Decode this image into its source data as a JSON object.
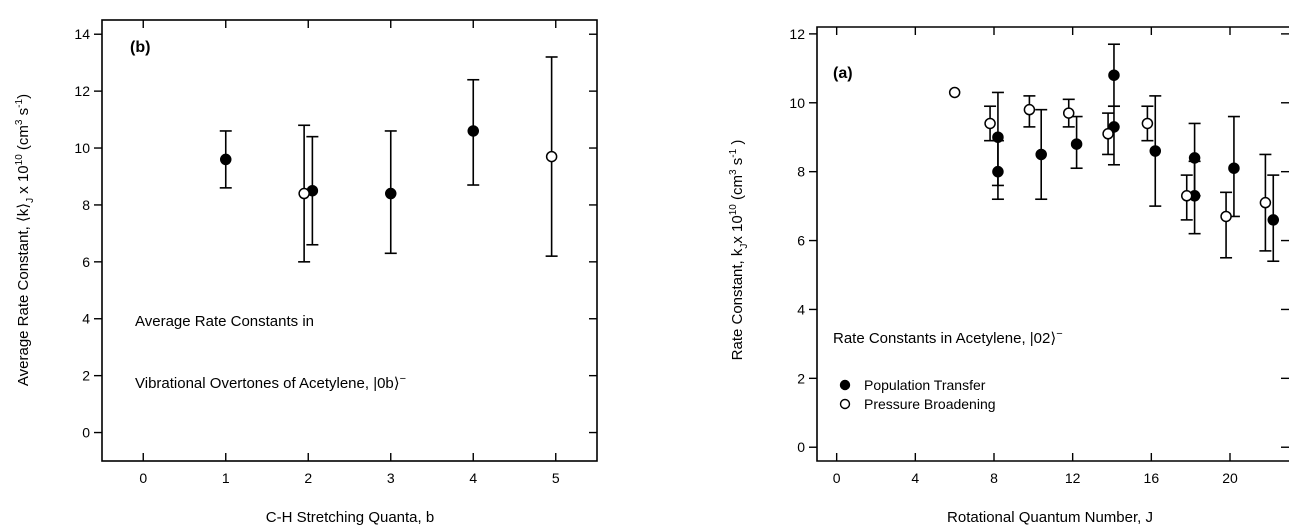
{
  "chart_data": [
    {
      "type": "scatter",
      "panel_label": "(b)",
      "xlabel": "C-H Stretching Quanta, b",
      "ylabel": "Average Rate Constant,  ⟨k⟩",
      "ylabel_sub": "J",
      "ylabel_mult": " x 10",
      "ylabel_exp": "10",
      "ylabel_units": "  (cm",
      "ylabel_units_exp1": "3",
      "ylabel_units_s": " s",
      "ylabel_units_exp2": "-1",
      "ylabel_units_close": ")",
      "xlim": [
        -0.5,
        5.5
      ],
      "ylim": [
        -1,
        14.5
      ],
      "x_ticks": [
        0,
        1,
        2,
        3,
        4,
        5
      ],
      "x_tick_labels": [
        "0",
        "1",
        "2",
        "3",
        "4",
        "5"
      ],
      "y_ticks": [
        0,
        2,
        4,
        6,
        8,
        10,
        12,
        14
      ],
      "y_tick_labels": [
        "0",
        "2",
        "4",
        "6",
        "8",
        "10",
        "12",
        "14"
      ],
      "annotation_line1": "Average Rate Constants in",
      "annotation_line2": "Vibrational Overtones of Acetylene, |0b⟩",
      "annotation_sup": "−",
      "series": [
        {
          "marker": "filled",
          "points": [
            {
              "x": 1.0,
              "y": 9.6,
              "yerr_low": 8.6,
              "yerr_high": 10.6
            },
            {
              "x": 2.05,
              "y": 8.5,
              "yerr_low": 6.6,
              "yerr_high": 10.4
            },
            {
              "x": 3.0,
              "y": 8.4,
              "yerr_low": 6.3,
              "yerr_high": 10.6
            },
            {
              "x": 4.0,
              "y": 10.6,
              "yerr_low": 8.7,
              "yerr_high": 12.4
            }
          ]
        },
        {
          "marker": "open",
          "points": [
            {
              "x": 1.95,
              "y": 8.4,
              "yerr_low": 6.0,
              "yerr_high": 10.8
            },
            {
              "x": 4.95,
              "y": 9.7,
              "yerr_low": 6.2,
              "yerr_high": 13.2
            }
          ]
        }
      ]
    },
    {
      "type": "scatter",
      "panel_label": "(a)",
      "xlabel": "Rotational Quantum Number, J",
      "ylabel": "Rate Constant,  k",
      "ylabel_sub": "J",
      "ylabel_mult": "x 10",
      "ylabel_exp": "10",
      "ylabel_units": "  (cm",
      "ylabel_units_exp1": "3",
      "ylabel_units_s": " s",
      "ylabel_units_exp2": "-1",
      "ylabel_units_close": " )",
      "xlim": [
        -1,
        23
      ],
      "ylim": [
        -0.4,
        12.2
      ],
      "x_ticks": [
        0,
        4,
        8,
        12,
        16,
        20
      ],
      "x_tick_labels": [
        "0",
        "4",
        "8",
        "12",
        "16",
        "20"
      ],
      "y_ticks": [
        0,
        2,
        4,
        6,
        8,
        10,
        12
      ],
      "y_tick_labels": [
        "0",
        "2",
        "4",
        "6",
        "8",
        "10",
        "12"
      ],
      "annotation_line1": "Rate Constants in Acetylene, |02⟩",
      "annotation_sup": "−",
      "legend": [
        {
          "marker": "filled",
          "label": "Population Transfer"
        },
        {
          "marker": "open",
          "label": "Pressure Broadening"
        }
      ],
      "series": [
        {
          "name": "Population Transfer",
          "marker": "filled",
          "points": [
            {
              "x": 8.2,
              "y": 9.0,
              "yerr_low": 7.6,
              "yerr_high": 10.3
            },
            {
              "x": 8.2,
              "y": 8.0,
              "yerr_low": 7.2,
              "yerr_high": 8.9
            },
            {
              "x": 10.4,
              "y": 8.5,
              "yerr_low": 7.2,
              "yerr_high": 9.8
            },
            {
              "x": 12.2,
              "y": 8.8,
              "yerr_low": 8.1,
              "yerr_high": 9.6
            },
            {
              "x": 14.1,
              "y": 9.3,
              "yerr_low": 8.2,
              "yerr_high": 9.9
            },
            {
              "x": 14.1,
              "y": 10.8,
              "yerr_low": 9.9,
              "yerr_high": 11.7
            },
            {
              "x": 16.2,
              "y": 8.6,
              "yerr_low": 7.0,
              "yerr_high": 10.2
            },
            {
              "x": 18.2,
              "y": 8.4,
              "yerr_low": 7.3,
              "yerr_high": 9.4
            },
            {
              "x": 18.2,
              "y": 7.3,
              "yerr_low": 6.2,
              "yerr_high": 8.3
            },
            {
              "x": 20.2,
              "y": 8.1,
              "yerr_low": 6.7,
              "yerr_high": 9.6
            },
            {
              "x": 22.2,
              "y": 6.6,
              "yerr_low": 5.4,
              "yerr_high": 7.9
            }
          ]
        },
        {
          "name": "Pressure Broadening",
          "marker": "open",
          "points": [
            {
              "x": 6.0,
              "y": 10.3,
              "yerr_low": 10.3,
              "yerr_high": 10.3
            },
            {
              "x": 7.8,
              "y": 9.4,
              "yerr_low": 8.9,
              "yerr_high": 9.9
            },
            {
              "x": 9.8,
              "y": 9.8,
              "yerr_low": 9.3,
              "yerr_high": 10.2
            },
            {
              "x": 11.8,
              "y": 9.7,
              "yerr_low": 9.3,
              "yerr_high": 10.1
            },
            {
              "x": 13.8,
              "y": 9.1,
              "yerr_low": 8.5,
              "yerr_high": 9.7
            },
            {
              "x": 15.8,
              "y": 9.4,
              "yerr_low": 8.9,
              "yerr_high": 9.9
            },
            {
              "x": 17.8,
              "y": 7.3,
              "yerr_low": 6.6,
              "yerr_high": 7.9
            },
            {
              "x": 19.8,
              "y": 6.7,
              "yerr_low": 5.5,
              "yerr_high": 7.4
            },
            {
              "x": 21.8,
              "y": 7.1,
              "yerr_low": 5.7,
              "yerr_high": 8.5
            }
          ]
        }
      ]
    }
  ]
}
